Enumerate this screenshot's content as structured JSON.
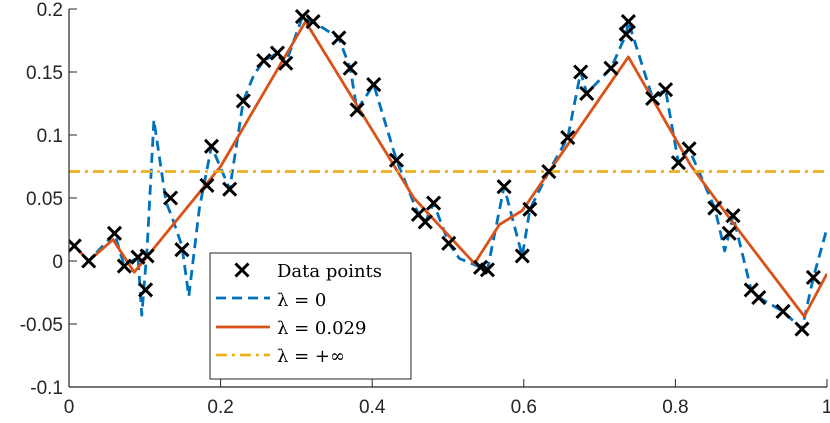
{
  "chart_data": {
    "type": "line",
    "title": "",
    "xlabel": "",
    "ylabel": "",
    "xlim": [
      0,
      1
    ],
    "ylim": [
      -0.1,
      0.2
    ],
    "grid": false,
    "legend_position": "bottom-left",
    "x_ticks": [
      {
        "value": 0,
        "label": "0"
      },
      {
        "value": 0.2,
        "label": "0.2"
      },
      {
        "value": 0.4,
        "label": "0.4"
      },
      {
        "value": 0.6,
        "label": "0.6"
      },
      {
        "value": 0.8,
        "label": "0.8"
      },
      {
        "value": 1,
        "label": "1"
      }
    ],
    "y_ticks": [
      {
        "value": -0.1,
        "label": "-0.1"
      },
      {
        "value": -0.05,
        "label": "-0.05"
      },
      {
        "value": 0,
        "label": "0"
      },
      {
        "value": 0.05,
        "label": "0.05"
      },
      {
        "value": 0.1,
        "label": "0.1"
      },
      {
        "value": 0.15,
        "label": "0.15"
      },
      {
        "value": 0.2,
        "label": "0.2"
      }
    ],
    "colors": {
      "points": "#000000",
      "lambda0": "#0072BD",
      "lambda_mid": "#D95319",
      "lambda_inf": "#EDB120",
      "axis": "#262626"
    },
    "legend": [
      {
        "key": "points",
        "label": "Data points"
      },
      {
        "key": "lambda0",
        "label": "λ = 0"
      },
      {
        "key": "lambda_mid",
        "label": "λ = 0.029"
      },
      {
        "key": "lambda_inf",
        "label": "λ = +∞"
      }
    ],
    "data_points": [
      [
        0.007,
        0.012
      ],
      [
        0.026,
        0.0
      ],
      [
        0.06,
        0.022
      ],
      [
        0.073,
        -0.004
      ],
      [
        0.091,
        0.003
      ],
      [
        0.101,
        -0.023
      ],
      [
        0.103,
        0.004
      ],
      [
        0.134,
        0.05
      ],
      [
        0.149,
        0.009
      ],
      [
        0.182,
        0.06
      ],
      [
        0.188,
        0.091
      ],
      [
        0.212,
        0.057
      ],
      [
        0.23,
        0.127
      ],
      [
        0.257,
        0.159
      ],
      [
        0.275,
        0.165
      ],
      [
        0.286,
        0.157
      ],
      [
        0.308,
        0.194
      ],
      [
        0.322,
        0.19
      ],
      [
        0.356,
        0.177
      ],
      [
        0.371,
        0.153
      ],
      [
        0.38,
        0.12
      ],
      [
        0.402,
        0.14
      ],
      [
        0.432,
        0.08
      ],
      [
        0.461,
        0.037
      ],
      [
        0.47,
        0.031
      ],
      [
        0.481,
        0.046
      ],
      [
        0.501,
        0.014
      ],
      [
        0.543,
        -0.005
      ],
      [
        0.552,
        -0.007
      ],
      [
        0.574,
        0.059
      ],
      [
        0.598,
        0.004
      ],
      [
        0.608,
        0.041
      ],
      [
        0.633,
        0.071
      ],
      [
        0.658,
        0.098
      ],
      [
        0.675,
        0.15
      ],
      [
        0.683,
        0.133
      ],
      [
        0.715,
        0.153
      ],
      [
        0.735,
        0.18
      ],
      [
        0.738,
        0.19
      ],
      [
        0.77,
        0.129
      ],
      [
        0.787,
        0.136
      ],
      [
        0.804,
        0.078
      ],
      [
        0.818,
        0.089
      ],
      [
        0.852,
        0.042
      ],
      [
        0.871,
        0.022
      ],
      [
        0.876,
        0.036
      ],
      [
        0.9,
        -0.023
      ],
      [
        0.91,
        -0.029
      ],
      [
        0.942,
        -0.04
      ],
      [
        0.967,
        -0.054
      ],
      [
        0.982,
        -0.013
      ]
    ],
    "series": [
      {
        "name": "λ = 0",
        "key": "lambda0",
        "style": "dashed",
        "points": [
          [
            0.007,
            0.012
          ],
          [
            0.026,
            0.0
          ],
          [
            0.06,
            0.022
          ],
          [
            0.073,
            -0.004
          ],
          [
            0.091,
            0.003
          ],
          [
            0.096,
            -0.043
          ],
          [
            0.103,
            0.01
          ],
          [
            0.112,
            0.112
          ],
          [
            0.128,
            0.047
          ],
          [
            0.137,
            0.033
          ],
          [
            0.149,
            0.012
          ],
          [
            0.158,
            -0.028
          ],
          [
            0.172,
            0.042
          ],
          [
            0.188,
            0.091
          ],
          [
            0.212,
            0.057
          ],
          [
            0.23,
            0.127
          ],
          [
            0.244,
            0.148
          ],
          [
            0.257,
            0.159
          ],
          [
            0.275,
            0.165
          ],
          [
            0.286,
            0.157
          ],
          [
            0.308,
            0.194
          ],
          [
            0.322,
            0.19
          ],
          [
            0.356,
            0.177
          ],
          [
            0.371,
            0.153
          ],
          [
            0.38,
            0.12
          ],
          [
            0.402,
            0.14
          ],
          [
            0.432,
            0.08
          ],
          [
            0.461,
            0.037
          ],
          [
            0.47,
            0.031
          ],
          [
            0.481,
            0.046
          ],
          [
            0.501,
            0.014
          ],
          [
            0.515,
            0.002
          ],
          [
            0.543,
            -0.005
          ],
          [
            0.552,
            -0.007
          ],
          [
            0.574,
            0.059
          ],
          [
            0.598,
            0.004
          ],
          [
            0.608,
            0.041
          ],
          [
            0.633,
            0.071
          ],
          [
            0.658,
            0.098
          ],
          [
            0.675,
            0.15
          ],
          [
            0.683,
            0.133
          ],
          [
            0.715,
            0.153
          ],
          [
            0.735,
            0.18
          ],
          [
            0.738,
            0.19
          ],
          [
            0.77,
            0.129
          ],
          [
            0.787,
            0.136
          ],
          [
            0.804,
            0.078
          ],
          [
            0.818,
            0.089
          ],
          [
            0.852,
            0.042
          ],
          [
            0.865,
            0.008
          ],
          [
            0.871,
            0.022
          ],
          [
            0.876,
            0.036
          ],
          [
            0.9,
            -0.023
          ],
          [
            0.91,
            -0.029
          ],
          [
            0.942,
            -0.04
          ],
          [
            0.967,
            -0.054
          ],
          [
            0.982,
            -0.013
          ],
          [
            1.0,
            0.026
          ]
        ]
      },
      {
        "name": "λ = 0.029",
        "key": "lambda_mid",
        "style": "solid",
        "points": [
          [
            0.007,
            0.012
          ],
          [
            0.026,
            0.0
          ],
          [
            0.058,
            0.017
          ],
          [
            0.086,
            -0.009
          ],
          [
            0.12,
            0.016
          ],
          [
            0.2,
            0.075
          ],
          [
            0.312,
            0.19
          ],
          [
            0.455,
            0.05
          ],
          [
            0.535,
            -0.002
          ],
          [
            0.568,
            0.029
          ],
          [
            0.598,
            0.04
          ],
          [
            0.738,
            0.162
          ],
          [
            0.82,
            0.076
          ],
          [
            0.875,
            0.031
          ],
          [
            0.97,
            -0.044
          ],
          [
            1.0,
            -0.01
          ]
        ]
      },
      {
        "name": "λ = +∞",
        "key": "lambda_inf",
        "style": "dashdot",
        "points": [
          [
            0,
            0.071
          ],
          [
            1,
            0.071
          ]
        ]
      }
    ]
  }
}
